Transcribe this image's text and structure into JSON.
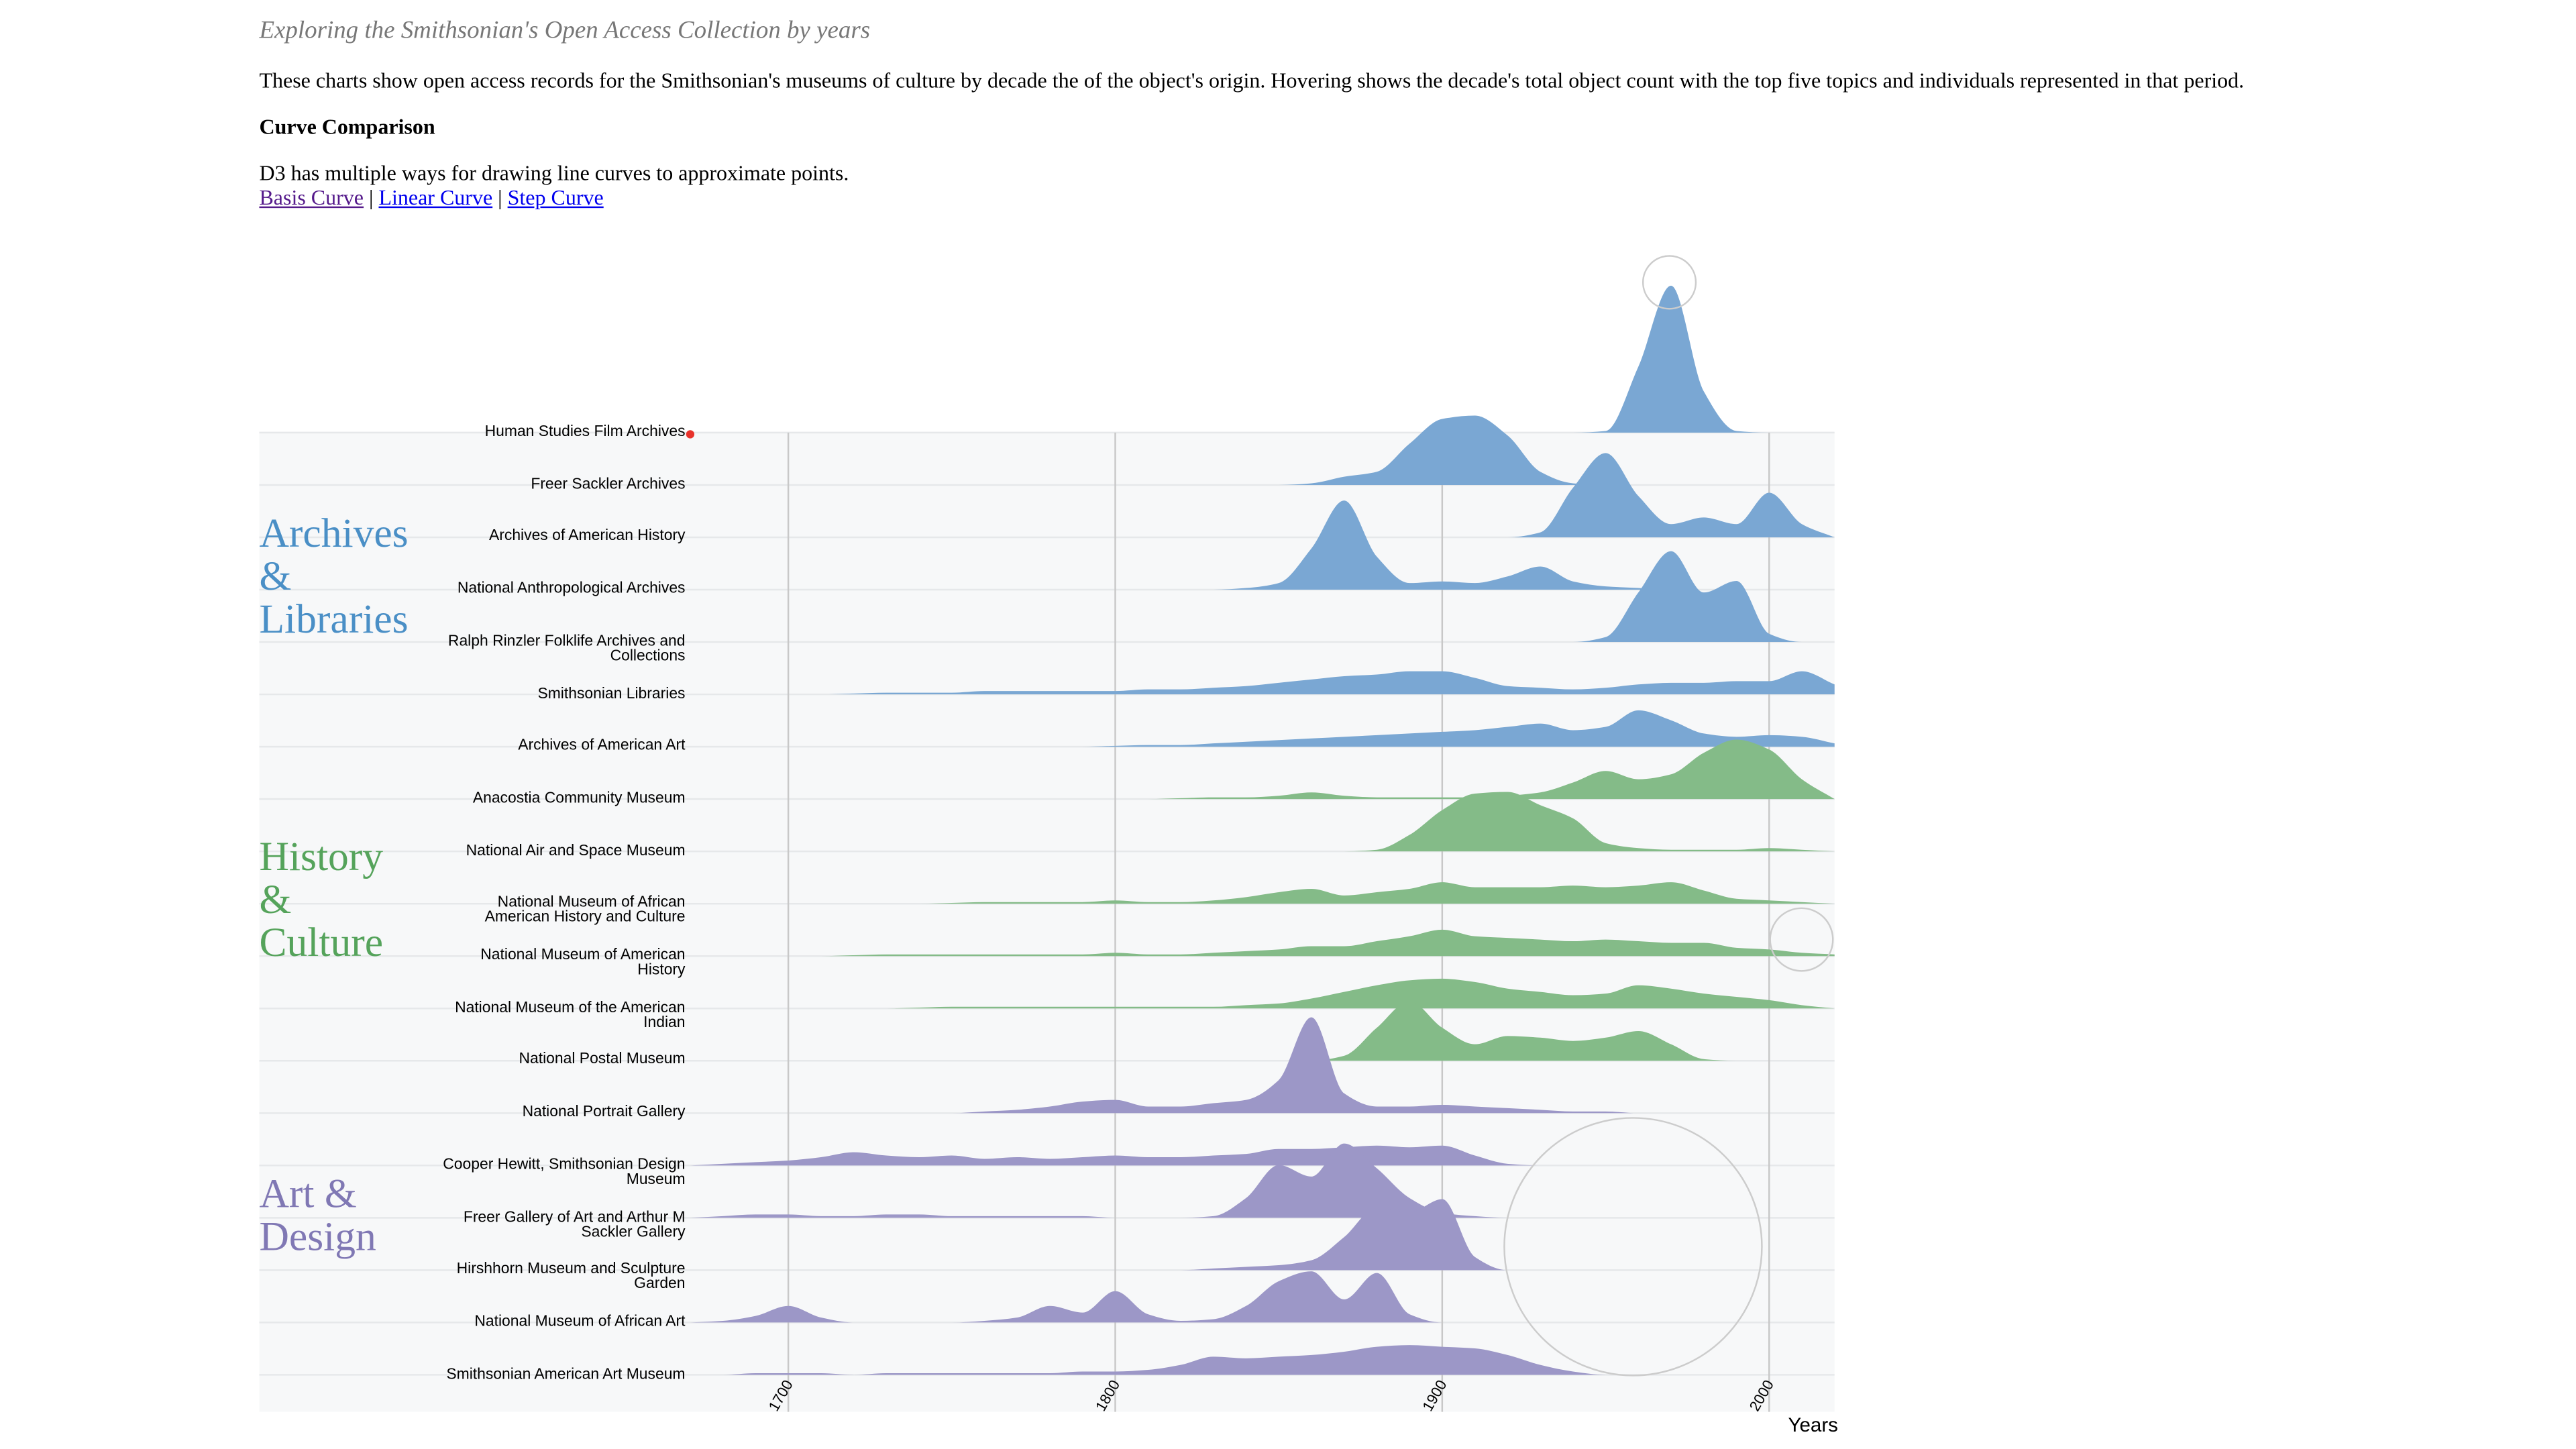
{
  "header": {
    "subtitle": "Exploring the Smithsonian's Open Access Collection by years",
    "description": "These charts show open access records for the Smithsonian's museums of culture by decade the of the object's origin. Hovering shows the decade's total object count with the top five topics and individuals represented in that period.",
    "section_title": "Curve Comparison",
    "section_text": "D3 has multiple ways for drawing line curves to approximate points.",
    "links": [
      "Basis Curve",
      "Linear Curve",
      "Step Curve"
    ],
    "link_separator": "|"
  },
  "chart_data": {
    "type": "ridgeline",
    "x_label": "Years",
    "x": [
      1670,
      1680,
      1690,
      1700,
      1710,
      1720,
      1730,
      1740,
      1750,
      1760,
      1770,
      1780,
      1790,
      1800,
      1810,
      1820,
      1830,
      1840,
      1850,
      1860,
      1870,
      1880,
      1890,
      1900,
      1910,
      1920,
      1930,
      1940,
      1950,
      1960,
      1970,
      1980,
      1990,
      2000,
      2010,
      2020
    ],
    "xlim": [
      1670,
      2020
    ],
    "xticks": [
      1700,
      1800,
      1900,
      2000
    ],
    "grid": true,
    "groups": [
      {
        "name": "Archives & Libraries",
        "label_color": "#4a8fc6",
        "series": [
          {
            "name": "Human Studies Film Archives",
            "color": "#7aa7d3",
            "values": [
              0,
              0,
              0,
              0,
              0,
              0,
              0,
              0,
              0,
              0,
              0,
              0,
              0,
              0,
              0,
              0,
              0,
              0,
              0,
              0,
              0,
              0,
              0,
              0,
              0,
              0,
              0,
              0,
              1,
              40,
              89,
              25,
              1,
              0,
              0,
              0
            ]
          },
          {
            "name": "Freer Sackler Archives",
            "color": "#7aa7d3",
            "values": [
              0,
              0,
              0,
              0,
              0,
              0,
              0,
              0,
              0,
              0,
              0,
              0,
              0,
              0,
              0,
              0,
              0,
              0,
              0,
              1,
              5,
              8,
              25,
              40,
              42,
              30,
              8,
              1,
              0,
              0,
              0,
              0,
              0,
              0,
              0,
              0
            ]
          },
          {
            "name": "Archives of American History",
            "color": "#7aa7d3",
            "values": [
              0,
              0,
              0,
              0,
              0,
              0,
              0,
              0,
              0,
              0,
              0,
              0,
              0,
              0,
              0,
              0,
              0,
              0,
              0,
              0,
              0,
              0,
              0,
              0,
              0,
              0,
              3,
              30,
              51,
              25,
              8,
              12,
              8,
              27,
              8,
              0
            ]
          },
          {
            "name": "National Anthropological Archives",
            "color": "#7aa7d3",
            "values": [
              0,
              0,
              0,
              0,
              0,
              0,
              0,
              0,
              0,
              0,
              0,
              0,
              0,
              0,
              0,
              0,
              0,
              1,
              4,
              25,
              54,
              20,
              4,
              5,
              4,
              8,
              14,
              5,
              2,
              1,
              0,
              0,
              0,
              0,
              0,
              0
            ]
          },
          {
            "name": "Ralph Rinzler Folklife Archives and Collections",
            "color": "#7aa7d3",
            "values": [
              0,
              0,
              0,
              0,
              0,
              0,
              0,
              0,
              0,
              0,
              0,
              0,
              0,
              0,
              0,
              0,
              0,
              0,
              0,
              0,
              0,
              0,
              0,
              0,
              0,
              0,
              0,
              0,
              3,
              30,
              55,
              30,
              37,
              5,
              0,
              0
            ]
          },
          {
            "name": "Smithsonian Libraries",
            "color": "#7aa7d3",
            "values": [
              0,
              0,
              0,
              0,
              0,
              0.5,
              1,
              1,
              1,
              2,
              2,
              2,
              2,
              2,
              3,
              3,
              4,
              5,
              7,
              9,
              11,
              12,
              14,
              14,
              10,
              5,
              4,
              3,
              4,
              6,
              7,
              7,
              8,
              8,
              14,
              6
            ]
          },
          {
            "name": "Archives of American Art",
            "color": "#7aa7d3",
            "values": [
              0,
              0,
              0,
              0,
              0,
              0,
              0,
              0,
              0,
              0,
              0,
              0,
              0,
              0.5,
              1,
              1,
              2,
              3,
              4,
              5,
              6,
              7,
              8,
              9,
              10,
              12,
              14,
              10,
              12,
              22,
              16,
              8,
              6,
              7,
              6,
              2
            ]
          }
        ]
      },
      {
        "name": "History & Culture",
        "label_color": "#55a35b",
        "series": [
          {
            "name": "Anacostia Community Museum",
            "color": "#84bb88",
            "values": [
              0,
              0,
              0,
              0,
              0,
              0,
              0,
              0,
              0,
              0,
              0,
              0,
              0,
              0,
              0,
              0.5,
              1,
              1,
              2,
              4,
              2,
              1,
              1,
              1,
              1,
              2,
              4,
              10,
              17,
              12,
              15,
              28,
              36,
              30,
              12,
              0
            ]
          },
          {
            "name": "National Air and Space Museum",
            "color": "#84bb88",
            "values": [
              0,
              0,
              0,
              0,
              0,
              0,
              0,
              0,
              0,
              0,
              0,
              0,
              0,
              0,
              0,
              0,
              0,
              0,
              0,
              0,
              0,
              1,
              10,
              25,
              35,
              36,
              28,
              20,
              5,
              2,
              1,
              1,
              1,
              2,
              1,
              0
            ]
          },
          {
            "name": "National Museum of African American History and Culture",
            "color": "#84bb88",
            "values": [
              0,
              0,
              0,
              0,
              0,
              0,
              0,
              0,
              0.5,
              1,
              1,
              1,
              1,
              2,
              1,
              1,
              2,
              4,
              7,
              9,
              5,
              7,
              9,
              13,
              10,
              10,
              10,
              11,
              10,
              11,
              13,
              8,
              3,
              2,
              1,
              0
            ]
          },
          {
            "name": "National Museum of American History",
            "color": "#84bb88",
            "values": [
              0,
              0,
              0,
              0,
              0,
              0.5,
              1,
              1,
              1,
              1,
              1,
              1,
              1,
              2,
              1,
              1,
              2,
              3,
              4,
              6,
              6,
              9,
              12,
              16,
              12,
              11,
              10,
              9,
              10,
              9,
              8,
              8,
              5,
              4,
              2,
              1
            ]
          },
          {
            "name": "National Museum of the American Indian",
            "color": "#84bb88",
            "values": [
              0,
              0,
              0,
              0,
              0,
              0,
              0,
              0.5,
              1,
              1,
              1,
              1,
              1,
              1,
              1,
              1,
              1,
              2,
              3,
              6,
              10,
              14,
              17,
              18,
              16,
              12,
              10,
              8,
              9,
              14,
              12,
              9,
              7,
              5,
              2,
              0
            ]
          },
          {
            "name": "National Postal Museum",
            "color": "#84bb88",
            "values": [
              0,
              0,
              0,
              0,
              0,
              0,
              0,
              0,
              0,
              0,
              0,
              0,
              0,
              0,
              0,
              0,
              0,
              0,
              0,
              0,
              3,
              20,
              36,
              20,
              10,
              15,
              14,
              12,
              14,
              18,
              10,
              1,
              0,
              0,
              0,
              0
            ]
          }
        ]
      },
      {
        "name": "Art & Design",
        "label_color": "#8078b4",
        "series": [
          {
            "name": "National Portrait Gallery",
            "color": "#9c97c7",
            "values": [
              0,
              0,
              0,
              0,
              0,
              0,
              0,
              0,
              0,
              1,
              2,
              4,
              7,
              8,
              4,
              4,
              6,
              8,
              20,
              58,
              12,
              4,
              4,
              5,
              4,
              3,
              2,
              1,
              1,
              0,
              0,
              0,
              0,
              0,
              0,
              0
            ]
          },
          {
            "name": "Cooper Hewitt, Smithsonian Design Museum",
            "color": "#9c97c7",
            "values": [
              0,
              1,
              2,
              3,
              5,
              8,
              6,
              5,
              6,
              4,
              5,
              4,
              5,
              6,
              5,
              5,
              6,
              7,
              10,
              10,
              11,
              12,
              11,
              12,
              6,
              1,
              0,
              0,
              0,
              0,
              0,
              0,
              0,
              0,
              0,
              0
            ]
          },
          {
            "name": "Freer Gallery of Art and Arthur M Sackler Gallery",
            "color": "#9c97c7",
            "values": [
              0,
              1,
              2,
              2,
              1,
              1,
              2,
              2,
              1,
              1,
              1,
              1,
              1,
              0,
              0,
              0,
              1,
              12,
              32,
              25,
              45,
              30,
              12,
              3,
              1,
              0,
              0,
              0,
              0,
              0,
              0,
              0,
              0,
              0,
              0,
              0
            ]
          },
          {
            "name": "Hirshhorn Museum and Sculpture Garden",
            "color": "#9c97c7",
            "values": [
              0,
              0,
              0,
              0,
              0,
              0,
              0,
              0,
              0,
              0,
              0,
              0,
              0,
              0,
              0,
              0,
              1,
              2,
              3,
              6,
              20,
              38,
              35,
              43,
              8,
              0,
              0,
              0,
              0,
              0,
              0,
              0,
              0,
              0,
              0,
              0
            ]
          },
          {
            "name": "National Museum of African Art",
            "color": "#9c97c7",
            "values": [
              0,
              1,
              4,
              10,
              3,
              0,
              0,
              0,
              0,
              1,
              3,
              10,
              6,
              19,
              5,
              1,
              2,
              10,
              25,
              31,
              14,
              30,
              5,
              0,
              0,
              0,
              0,
              0,
              0,
              0,
              0,
              0,
              0,
              0,
              0,
              0
            ]
          },
          {
            "name": "Smithsonian American Art Museum",
            "color": "#9c97c7",
            "values": [
              0,
              0,
              1,
              1,
              1,
              0,
              1,
              1,
              1,
              1,
              1,
              1,
              2,
              2,
              3,
              6,
              11,
              10,
              11,
              12,
              14,
              17,
              18,
              17,
              16,
              12,
              6,
              2,
              0,
              0,
              0,
              0,
              0,
              0,
              0,
              0
            ]
          }
        ]
      }
    ]
  }
}
